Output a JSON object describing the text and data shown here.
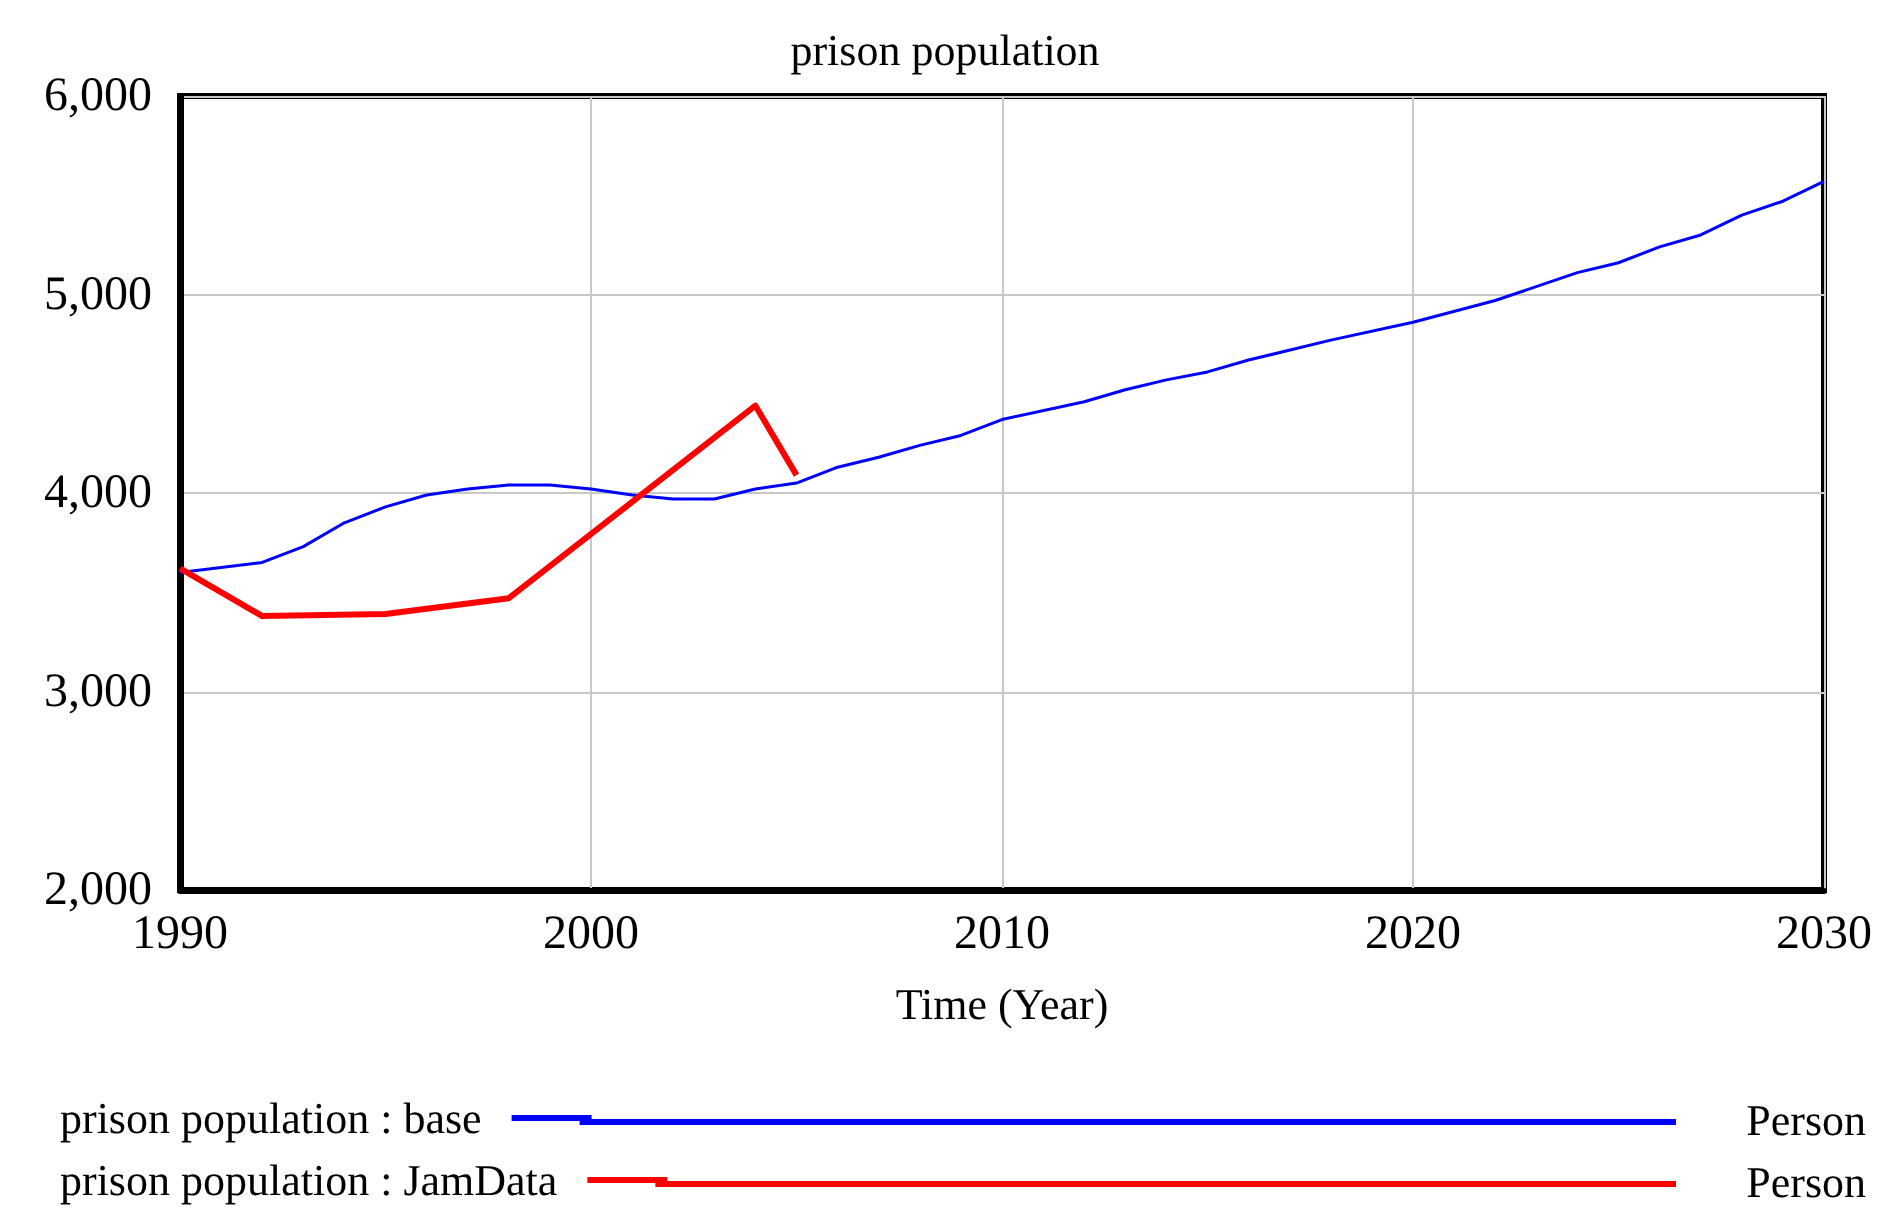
{
  "chart_data": {
    "type": "line",
    "title": "prison population",
    "xlabel": "Time (Year)",
    "xlim": [
      1990,
      2030
    ],
    "xticks": [
      1990,
      2000,
      2010,
      2020,
      2030
    ],
    "ylim": [
      2000,
      6000
    ],
    "yticks": [
      {
        "value": 2000,
        "label": "2,000"
      },
      {
        "value": 3000,
        "label": "3,000"
      },
      {
        "value": 4000,
        "label": "4,000"
      },
      {
        "value": 5000,
        "label": "5,000"
      },
      {
        "value": 6000,
        "label": "6,000"
      }
    ],
    "grid": true,
    "legend": "bottom",
    "annotations": [
      "Person",
      "Person"
    ],
    "series": [
      {
        "name": "prison population : base",
        "color": "#0000ff",
        "x": [
          1990,
          1992,
          1993,
          1994,
          1995,
          1996,
          1997,
          1998,
          1999,
          2000,
          2001,
          2002,
          2003,
          2004,
          2005,
          2006,
          2007,
          2008,
          2009,
          2010,
          2012,
          2013,
          2014,
          2015,
          2016,
          2018,
          2020,
          2022,
          2024,
          2025,
          2026,
          2027,
          2028,
          2029,
          2030
        ],
        "values": [
          3600,
          3650,
          3730,
          3850,
          3930,
          3990,
          4020,
          4040,
          4040,
          4020,
          3990,
          3970,
          3970,
          4020,
          4050,
          4130,
          4180,
          4240,
          4290,
          4370,
          4460,
          4520,
          4570,
          4610,
          4670,
          4770,
          4860,
          4970,
          5110,
          5160,
          5240,
          5300,
          5400,
          5470,
          5570
        ]
      },
      {
        "name": "prison population : JamData",
        "color": "#ff0000",
        "x": [
          1990,
          1992,
          1995,
          1998,
          2004,
          2005
        ],
        "values": [
          3620,
          3380,
          3390,
          3470,
          4440,
          4090
        ]
      }
    ]
  }
}
